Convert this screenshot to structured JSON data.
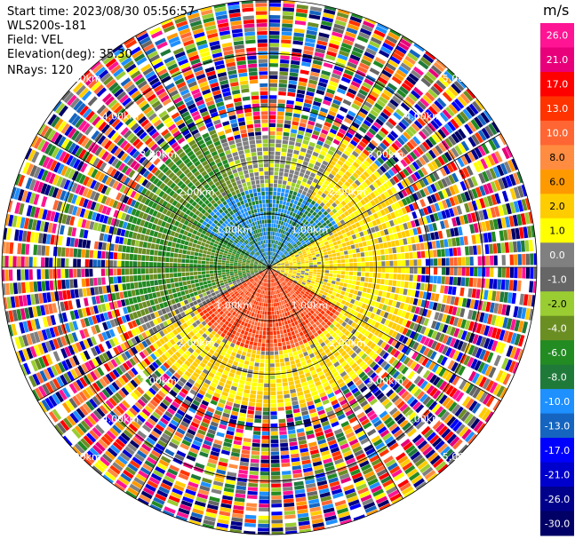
{
  "header": {
    "start_time": "Start time: 2023/08/30 05:56:57",
    "instrument": "WLS200s-181",
    "field": "Field: VEL",
    "elevation": "Elevation(deg): 35.30",
    "nrays": "NRays: 120"
  },
  "range_ring_labels": [
    "1.00km",
    "2.00km",
    "3.00km",
    "4.00km",
    "5.00km"
  ],
  "colorbar": {
    "unit": "m/s",
    "ticks": [
      "26.0",
      "21.0",
      "17.0",
      "13.0",
      "10.0",
      "8.0",
      "6.0",
      "2.0",
      "1.0",
      "0.0",
      "-1.0",
      "-2.0",
      "-4.0",
      "-6.0",
      "-8.0",
      "-10.0",
      "-13.0",
      "-17.0",
      "-21.0",
      "-26.0",
      "-30.0"
    ],
    "colors": [
      "#ff1493",
      "#e8007a",
      "#ff0000",
      "#ff3300",
      "#ff6633",
      "#ff8c40",
      "#ff9900",
      "#ffcc00",
      "#ffff00",
      "#808080",
      "#666666",
      "#9acd32",
      "#6b8e23",
      "#228b22",
      "#1f7a3a",
      "#1e90ff",
      "#1565c0",
      "#0000ff",
      "#0000cd",
      "#00008b",
      "#000066"
    ]
  },
  "chart_data": {
    "type": "heatmap",
    "projection": "polar-ppi",
    "field": "VEL",
    "units": "m/s",
    "n_rays": 120,
    "elevation_deg": 35.3,
    "max_range_km": 5.0,
    "range_rings_km": [
      1,
      2,
      3,
      4,
      5
    ],
    "spokes_deg": [
      0,
      30,
      60,
      90,
      120,
      150,
      180,
      210,
      240,
      270,
      300,
      330
    ],
    "value_range": [
      -30,
      26
    ],
    "regions": [
      {
        "sector_deg": [
          300,
          60
        ],
        "range_km": [
          0,
          1.5
        ],
        "velocity": -8.0
      },
      {
        "sector_deg": [
          250,
          340
        ],
        "range_km": [
          0,
          2.8
        ],
        "velocity": -4.0
      },
      {
        "sector_deg": [
          30,
          120
        ],
        "range_km": [
          0,
          2.8
        ],
        "velocity": 2.0
      },
      {
        "sector_deg": [
          120,
          240
        ],
        "range_km": [
          0,
          1.6
        ],
        "velocity": 13.0
      },
      {
        "sector_deg": [
          120,
          240
        ],
        "range_km": [
          1.6,
          2.6
        ],
        "velocity": 2.0
      },
      {
        "sector_deg": [
          240,
          260
        ],
        "range_km": [
          0,
          2.6
        ],
        "velocity": 0.0
      },
      {
        "sector_deg": [
          0,
          360
        ],
        "range_km": [
          3.0,
          5.0
        ],
        "velocity": "noise"
      }
    ]
  }
}
